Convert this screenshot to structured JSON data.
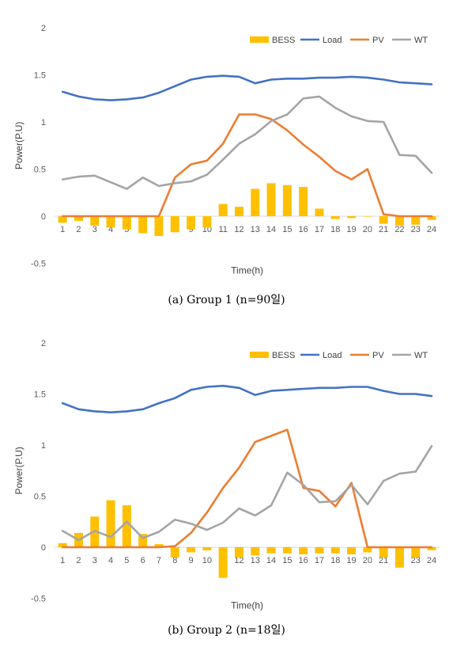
{
  "chart_data": [
    {
      "type": "bar+line",
      "xlabel": "Time(h)",
      "ylabel": "Power(P.U)",
      "ylim": [
        -0.5,
        2
      ],
      "yticks": [
        "2",
        "1.5",
        "1",
        "0.5",
        "0",
        "-0.5"
      ],
      "categories": [
        "1",
        "2",
        "3",
        "4",
        "5",
        "6",
        "7",
        "8",
        "9",
        "10",
        "11",
        "12",
        "13",
        "14",
        "15",
        "16",
        "17",
        "18",
        "19",
        "20",
        "21",
        "22",
        "23",
        "24"
      ],
      "legend": [
        "BESS",
        "Load",
        "PV",
        "WT"
      ],
      "legend_position": "top-right",
      "grid": false,
      "series": [
        {
          "name": "BESS",
          "kind": "bar",
          "color": "#FFC000",
          "values": [
            -0.07,
            -0.05,
            -0.1,
            -0.12,
            -0.14,
            -0.18,
            -0.21,
            -0.17,
            -0.14,
            -0.12,
            0.13,
            0.1,
            0.29,
            0.35,
            0.33,
            0.31,
            0.08,
            -0.03,
            -0.02,
            0.0,
            -0.08,
            -0.1,
            -0.09,
            -0.04
          ]
        },
        {
          "name": "Load",
          "kind": "line",
          "color": "#4472C4",
          "values": [
            1.32,
            1.27,
            1.24,
            1.23,
            1.24,
            1.26,
            1.31,
            1.38,
            1.45,
            1.48,
            1.49,
            1.48,
            1.41,
            1.45,
            1.46,
            1.46,
            1.47,
            1.47,
            1.48,
            1.47,
            1.45,
            1.42,
            1.41,
            1.4
          ]
        },
        {
          "name": "PV",
          "kind": "line",
          "color": "#ED7D31",
          "values": [
            0,
            0,
            0,
            0,
            0,
            0,
            0,
            0.41,
            0.55,
            0.59,
            0.77,
            1.08,
            1.08,
            1.03,
            0.91,
            0.76,
            0.63,
            0.48,
            0.39,
            0.5,
            0.02,
            0,
            0,
            0
          ]
        },
        {
          "name": "WT",
          "kind": "line",
          "color": "#A5A5A5",
          "values": [
            0.39,
            0.42,
            0.43,
            0.36,
            0.29,
            0.41,
            0.32,
            0.35,
            0.37,
            0.44,
            0.6,
            0.77,
            0.87,
            1.01,
            1.08,
            1.25,
            1.27,
            1.15,
            1.06,
            1.01,
            1.0,
            0.65,
            0.64,
            0.46
          ]
        }
      ],
      "caption": "(a) Group 1 (n=90일)"
    },
    {
      "type": "bar+line",
      "xlabel": "Time(h)",
      "ylabel": "Power(P.U)",
      "ylim": [
        -0.5,
        2
      ],
      "yticks": [
        "2",
        "1.5",
        "1",
        "0.5",
        "0",
        "-0.5"
      ],
      "categories": [
        "1",
        "2",
        "3",
        "4",
        "5",
        "6",
        "7",
        "8",
        "9",
        "10",
        "11",
        "12",
        "13",
        "14",
        "15",
        "16",
        "17",
        "18",
        "19",
        "20",
        "21",
        "22",
        "23",
        "24"
      ],
      "legend": [
        "BESS",
        "Load",
        "PV",
        "WT"
      ],
      "legend_position": "top-right",
      "grid": false,
      "series": [
        {
          "name": "BESS",
          "kind": "bar",
          "color": "#FFC000",
          "values": [
            0.04,
            0.14,
            0.3,
            0.46,
            0.41,
            0.13,
            0.03,
            -0.1,
            -0.05,
            -0.03,
            -0.3,
            -0.1,
            -0.08,
            -0.06,
            -0.06,
            -0.07,
            -0.06,
            -0.06,
            -0.07,
            -0.05,
            -0.1,
            -0.2,
            -0.1,
            -0.03
          ]
        },
        {
          "name": "Load",
          "kind": "line",
          "color": "#4472C4",
          "values": [
            1.41,
            1.35,
            1.33,
            1.32,
            1.33,
            1.35,
            1.41,
            1.46,
            1.54,
            1.57,
            1.58,
            1.56,
            1.49,
            1.53,
            1.54,
            1.55,
            1.56,
            1.56,
            1.57,
            1.57,
            1.53,
            1.5,
            1.5,
            1.48
          ]
        },
        {
          "name": "PV",
          "kind": "line",
          "color": "#ED7D31",
          "values": [
            0,
            0,
            0,
            0,
            0,
            0,
            0,
            0.01,
            0.14,
            0.34,
            0.58,
            0.78,
            1.03,
            1.09,
            1.15,
            0.58,
            0.55,
            0.4,
            0.63,
            0,
            0,
            0,
            0,
            0
          ]
        },
        {
          "name": "WT",
          "kind": "line",
          "color": "#A5A5A5",
          "values": [
            0.16,
            0.07,
            0.16,
            0.1,
            0.25,
            0.09,
            0.15,
            0.27,
            0.23,
            0.17,
            0.24,
            0.38,
            0.31,
            0.41,
            0.73,
            0.61,
            0.44,
            0.45,
            0.61,
            0.42,
            0.65,
            0.72,
            0.74,
            0.99
          ]
        }
      ],
      "caption": "(b) Group 2 (n=18일)"
    }
  ]
}
